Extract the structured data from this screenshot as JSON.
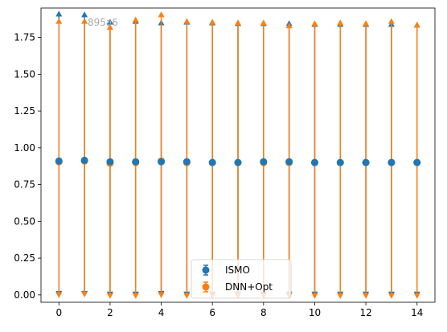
{
  "chart_data": {
    "type": "scatter",
    "title": "",
    "xlabel": "",
    "ylabel": "",
    "xlim": [
      -0.7,
      14.7
    ],
    "ylim": [
      -0.05,
      1.95
    ],
    "xticks": [
      0,
      2,
      4,
      6,
      8,
      10,
      12,
      14
    ],
    "yticks": [
      0.0,
      0.25,
      0.5,
      0.75,
      1.0,
      1.25,
      1.5,
      1.75
    ],
    "ytick_labels": [
      "0.00",
      "0.25",
      "0.50",
      "0.75",
      "1.00",
      "1.25",
      "1.50",
      "1.75"
    ],
    "grid": false,
    "legend_position": "lower center",
    "annotation": "895a6",
    "x": [
      0,
      1,
      2,
      3,
      4,
      5,
      6,
      7,
      8,
      9,
      10,
      11,
      12,
      13,
      14
    ],
    "series": [
      {
        "name": "ISMO",
        "color": "#1f77b4",
        "marker": "circle",
        "values": [
          0.91,
          0.915,
          0.905,
          0.905,
          0.905,
          0.905,
          0.9,
          0.9,
          0.905,
          0.905,
          0.9,
          0.9,
          0.9,
          0.9,
          0.9
        ],
        "err_low": [
          0.01,
          0.01,
          0.005,
          0.005,
          0.01,
          0.005,
          0.005,
          0.005,
          0.005,
          0.005,
          0.005,
          0.005,
          0.005,
          0.005,
          0.005
        ],
        "err_high": [
          1.91,
          1.905,
          1.855,
          1.86,
          1.85,
          1.855,
          1.85,
          1.845,
          1.845,
          1.845,
          1.84,
          1.84,
          1.84,
          1.84,
          1.835
        ]
      },
      {
        "name": "DNN+Opt",
        "color": "#ff7f0e",
        "marker": "circle",
        "values": [
          0.905,
          0.91,
          0.895,
          0.9,
          0.91,
          0.9,
          0.9,
          0.9,
          0.9,
          0.9,
          0.9,
          0.9,
          0.9,
          0.9,
          0.9
        ],
        "err_low": [
          0.0,
          0.005,
          -0.005,
          -0.005,
          0.0,
          -0.005,
          -0.005,
          -0.005,
          -0.005,
          -0.005,
          -0.005,
          -0.005,
          -0.005,
          -0.005,
          -0.005
        ],
        "err_high": [
          1.86,
          1.86,
          1.82,
          1.87,
          1.905,
          1.86,
          1.855,
          1.85,
          1.85,
          1.83,
          1.845,
          1.85,
          1.845,
          1.86,
          1.835
        ]
      }
    ]
  }
}
